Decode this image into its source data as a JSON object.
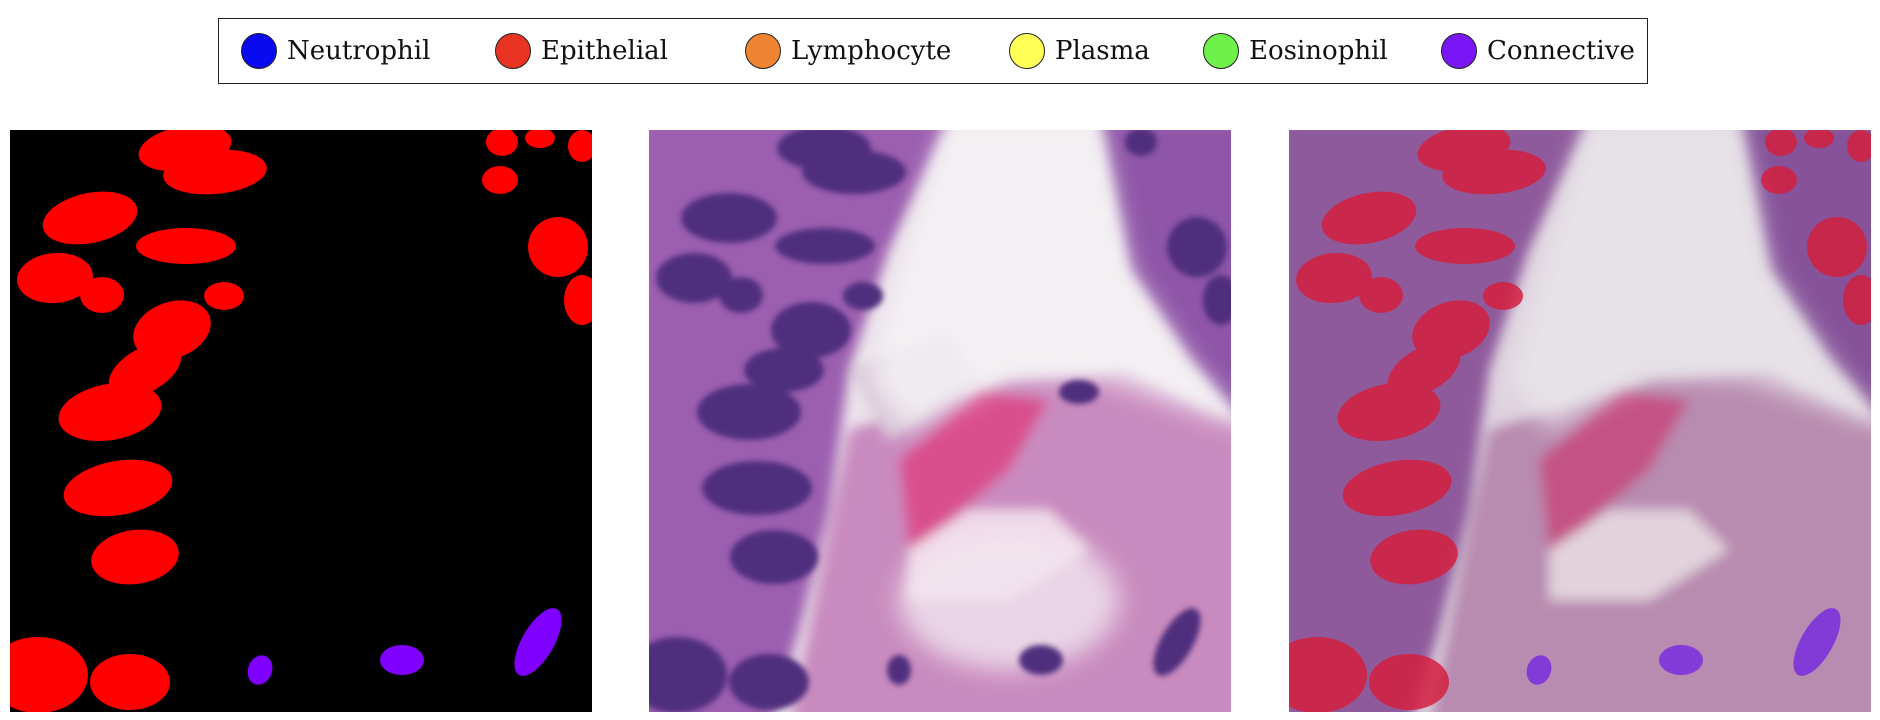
{
  "legend": {
    "items": [
      {
        "label": "Neutrophil",
        "color": "#0a0af0"
      },
      {
        "label": "Epithelial",
        "color": "#e83323"
      },
      {
        "label": "Lymphocyte",
        "color": "#ef8432"
      },
      {
        "label": "Plasma",
        "color": "#ffff55"
      },
      {
        "label": "Eosinophil",
        "color": "#6ff04a"
      },
      {
        "label": "Connective",
        "color": "#7a16f5"
      }
    ]
  },
  "panels": [
    "segmentation-mask",
    "histology-image",
    "overlay"
  ]
}
